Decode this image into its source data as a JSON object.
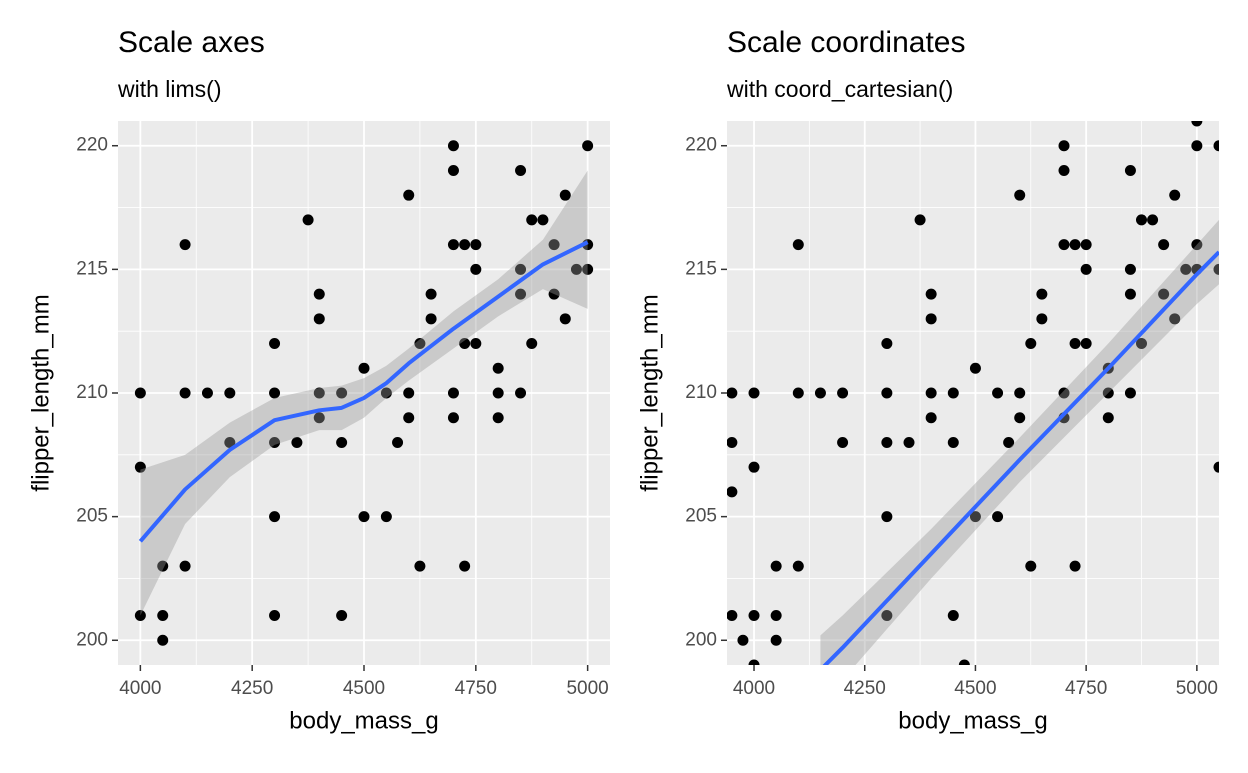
{
  "chart_data": [
    {
      "type": "scatter",
      "title": "Scale axes",
      "subtitle": "with lims()",
      "x_label": "body_mass_g",
      "y_label": "flipper_length_mm",
      "xlim": [
        3950,
        5050
      ],
      "ylim": [
        199,
        221
      ],
      "xticks": [
        4000,
        4250,
        4500,
        4750,
        5000
      ],
      "yticks": [
        200,
        205,
        210,
        215,
        220
      ],
      "grid": true,
      "points": {
        "color": "#000000",
        "x": [
          4000,
          4000,
          4000,
          4050,
          4050,
          4050,
          4100,
          4100,
          4100,
          4150,
          4200,
          4200,
          4300,
          4300,
          4300,
          4300,
          4300,
          4350,
          4375,
          4400,
          4400,
          4400,
          4400,
          4450,
          4450,
          4450,
          4500,
          4500,
          4550,
          4550,
          4575,
          4600,
          4600,
          4600,
          4625,
          4625,
          4650,
          4650,
          4700,
          4700,
          4700,
          4700,
          4700,
          4725,
          4725,
          4725,
          4750,
          4750,
          4750,
          4800,
          4800,
          4800,
          4850,
          4850,
          4850,
          4850,
          4875,
          4875,
          4900,
          4925,
          4925,
          4950,
          4950,
          4975,
          5000,
          5000,
          5000
        ],
        "y": [
          210,
          207,
          201,
          203,
          201,
          200,
          216,
          210,
          203,
          210,
          210,
          208,
          212,
          210,
          208,
          205,
          201,
          208,
          217,
          214,
          213,
          210,
          209,
          210,
          208,
          201,
          211,
          205,
          210,
          205,
          208,
          218,
          210,
          209,
          212,
          203,
          214,
          213,
          220,
          219,
          216,
          210,
          209,
          216,
          212,
          203,
          216,
          215,
          212,
          211,
          210,
          209,
          219,
          215,
          214,
          210,
          212,
          217,
          217,
          216,
          214,
          218,
          213,
          215,
          220,
          216,
          215
        ]
      },
      "smooth": {
        "color": "#3366ff",
        "band_color": "#999999",
        "x": [
          4000,
          4100,
          4200,
          4300,
          4400,
          4450,
          4500,
          4550,
          4600,
          4700,
          4800,
          4900,
          5000
        ],
        "y": [
          204.0,
          206.1,
          207.7,
          208.9,
          209.3,
          209.4,
          209.8,
          210.4,
          211.2,
          212.6,
          213.9,
          215.2,
          216.1
        ],
        "lower": [
          201.0,
          204.7,
          206.6,
          207.9,
          208.5,
          208.5,
          209.0,
          209.8,
          210.5,
          211.8,
          213.1,
          214.2,
          213.4
        ],
        "upper": [
          206.9,
          207.5,
          208.8,
          209.8,
          210.2,
          210.3,
          210.6,
          211.1,
          211.8,
          213.3,
          214.6,
          216.2,
          219.0
        ]
      }
    },
    {
      "type": "scatter",
      "title": "Scale coordinates",
      "subtitle": "with coord_cartesian()",
      "x_label": "body_mass_g",
      "y_label": "flipper_length_mm",
      "xlim": [
        3939,
        5050
      ],
      "ylim": [
        199,
        221
      ],
      "xticks": [
        4000,
        4250,
        4500,
        4750,
        5000
      ],
      "yticks": [
        200,
        205,
        210,
        215,
        220
      ],
      "grid": true,
      "points": {
        "color": "#000000",
        "x": [
          4000,
          4000,
          4000,
          4050,
          4050,
          4050,
          4100,
          4100,
          4100,
          4150,
          4200,
          4200,
          4300,
          4300,
          4300,
          4300,
          4300,
          4350,
          4375,
          4400,
          4400,
          4400,
          4400,
          4450,
          4450,
          4450,
          4500,
          4500,
          4550,
          4550,
          4575,
          4600,
          4600,
          4600,
          4625,
          4625,
          4650,
          4650,
          4700,
          4700,
          4700,
          4700,
          4700,
          4725,
          4725,
          4725,
          4750,
          4750,
          4750,
          4800,
          4800,
          4800,
          4850,
          4850,
          4850,
          4850,
          4875,
          4875,
          4900,
          4925,
          4925,
          4950,
          4950,
          4975,
          5000,
          5000,
          5000,
          3950,
          3950,
          3950,
          3950,
          3975,
          4000,
          4475,
          5000,
          5050,
          5050,
          5050
        ],
        "y": [
          210,
          207,
          201,
          203,
          201,
          200,
          216,
          210,
          203,
          210,
          210,
          208,
          212,
          210,
          208,
          205,
          201,
          208,
          217,
          214,
          213,
          210,
          209,
          210,
          208,
          201,
          211,
          205,
          210,
          205,
          208,
          218,
          210,
          209,
          212,
          203,
          214,
          213,
          220,
          219,
          216,
          210,
          209,
          216,
          212,
          203,
          216,
          215,
          212,
          211,
          210,
          209,
          219,
          215,
          214,
          210,
          212,
          217,
          217,
          216,
          214,
          218,
          213,
          215,
          220,
          216,
          215,
          210,
          208,
          206,
          201,
          200,
          199,
          199,
          221,
          220,
          215,
          207
        ]
      },
      "smooth": {
        "color": "#3366ff",
        "band_color": "#999999",
        "x": [
          4150,
          4200,
          4400,
          4600,
          4800,
          5000,
          5050
        ],
        "y": [
          198.8,
          199.7,
          203.5,
          207.3,
          211.0,
          214.8,
          215.7
        ],
        "lower": [
          197.4,
          198.4,
          202.5,
          206.4,
          210.0,
          213.6,
          214.4
        ],
        "upper": [
          200.2,
          201.0,
          204.5,
          208.2,
          212.0,
          216.0,
          217.0
        ]
      }
    }
  ]
}
